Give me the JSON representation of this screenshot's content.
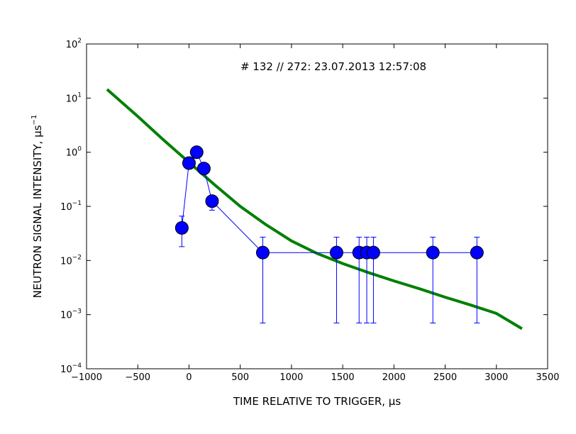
{
  "chart_data": {
    "type": "scatter",
    "annotation": "# 132 // 272: 23.07.2013 12:57:08",
    "xlabel": "TIME RELATIVE TO TRIGGER, μs",
    "ylabel_main": "NEUTRON SIGNAL INTENSITY, μs",
    "ylabel_exp": "−1",
    "xlim": [
      -1000,
      3500
    ],
    "ylim": [
      0.0001,
      100
    ],
    "yscale": "log",
    "grid": false,
    "xticks": [
      {
        "value": -1000,
        "label": "−1000"
      },
      {
        "value": -500,
        "label": "−500"
      },
      {
        "value": 0,
        "label": "0"
      },
      {
        "value": 500,
        "label": "500"
      },
      {
        "value": 1000,
        "label": "1000"
      },
      {
        "value": 1500,
        "label": "1500"
      },
      {
        "value": 2000,
        "label": "2000"
      },
      {
        "value": 2500,
        "label": "2500"
      },
      {
        "value": 3000,
        "label": "3000"
      },
      {
        "value": 3500,
        "label": "3500"
      }
    ],
    "yticks": [
      {
        "value": 0.0001,
        "base": "10",
        "exp": "−4"
      },
      {
        "value": 0.001,
        "base": "10",
        "exp": "−3"
      },
      {
        "value": 0.01,
        "base": "10",
        "exp": "−2"
      },
      {
        "value": 0.1,
        "base": "10",
        "exp": "−1"
      },
      {
        "value": 1,
        "base": "10",
        "exp": "0"
      },
      {
        "value": 10,
        "base": "10",
        "exp": "1"
      },
      {
        "value": 100,
        "base": "10",
        "exp": "2"
      }
    ],
    "series": [
      {
        "kind": "measurement",
        "color": "#0000ff",
        "points": [
          {
            "x": -70,
            "y": 0.04,
            "yerr_low": 0.018,
            "yerr_high": 0.066
          },
          {
            "x": 0,
            "y": 0.63
          },
          {
            "x": 75,
            "y": 1.0
          },
          {
            "x": 145,
            "y": 0.5
          },
          {
            "x": 225,
            "y": 0.125,
            "yerr_low": 0.085,
            "yerr_high": 0.14
          },
          {
            "x": 720,
            "y": 0.014,
            "yerr_low": 0.0007,
            "yerr_high": 0.027
          },
          {
            "x": 1440,
            "y": 0.014,
            "yerr_low": 0.0007,
            "yerr_high": 0.027
          },
          {
            "x": 1660,
            "y": 0.014,
            "yerr_low": 0.0007,
            "yerr_high": 0.027
          },
          {
            "x": 1735,
            "y": 0.014,
            "yerr_low": 0.0007,
            "yerr_high": 0.027
          },
          {
            "x": 1800,
            "y": 0.014,
            "yerr_low": 0.0007,
            "yerr_high": 0.027
          },
          {
            "x": 2380,
            "y": 0.014,
            "yerr_low": 0.0007,
            "yerr_high": 0.027
          },
          {
            "x": 2810,
            "y": 0.014,
            "yerr_low": 0.0007,
            "yerr_high": 0.027
          }
        ]
      },
      {
        "kind": "fit",
        "color": "#008000",
        "points": [
          {
            "x": -800,
            "y": 14.5
          },
          {
            "x": -500,
            "y": 4.6
          },
          {
            "x": -250,
            "y": 1.7
          },
          {
            "x": 0,
            "y": 0.65
          },
          {
            "x": 250,
            "y": 0.25
          },
          {
            "x": 500,
            "y": 0.1
          },
          {
            "x": 750,
            "y": 0.046
          },
          {
            "x": 1000,
            "y": 0.023
          },
          {
            "x": 1250,
            "y": 0.0135
          },
          {
            "x": 1500,
            "y": 0.0088
          },
          {
            "x": 1750,
            "y": 0.006
          },
          {
            "x": 2000,
            "y": 0.0042
          },
          {
            "x": 2250,
            "y": 0.003
          },
          {
            "x": 2500,
            "y": 0.0021
          },
          {
            "x": 2750,
            "y": 0.0015
          },
          {
            "x": 3000,
            "y": 0.00105
          },
          {
            "x": 3250,
            "y": 0.00055
          }
        ]
      }
    ]
  }
}
